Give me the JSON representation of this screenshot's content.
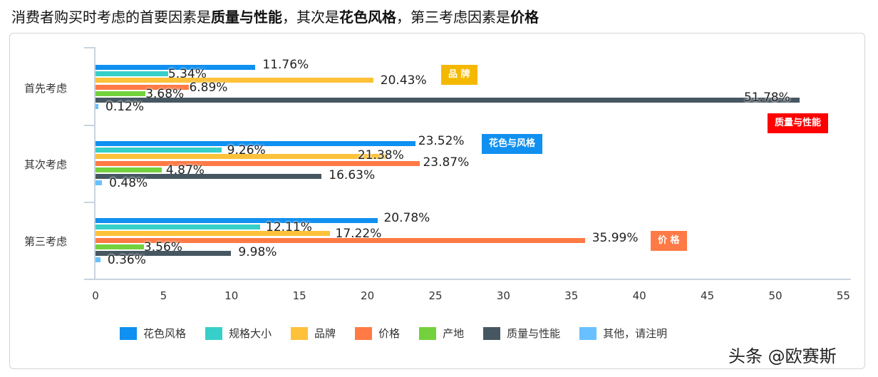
{
  "title": {
    "part1": "消费者购买时考虑的首要因素是",
    "bold1": "质量与性能",
    "part2": "，其次是",
    "bold2": "花色风格",
    "part3": "，第三考虑因素是",
    "bold3": "价格"
  },
  "chart_data": {
    "type": "bar",
    "orientation": "horizontal",
    "title": "消费者购买时考虑的首要因素是质量与性能，其次是花色风格，第三考虑因素是价格",
    "xlabel": "",
    "ylabel": "",
    "xlim": [
      0,
      55
    ],
    "xticks": [
      0,
      5,
      10,
      15,
      20,
      25,
      30,
      35,
      40,
      45,
      50,
      55
    ],
    "grid": false,
    "legend_position": "bottom",
    "categories": [
      "首先考虑",
      "其次考虑",
      "第三考虑"
    ],
    "series": [
      {
        "name": "花色风格",
        "color": "#1090f0",
        "values": [
          11.76,
          23.52,
          20.78
        ],
        "labels": [
          "11.76%",
          "23.52%",
          "20.78%"
        ]
      },
      {
        "name": "规格大小",
        "color": "#36cfc9",
        "values": [
          5.34,
          9.26,
          12.11
        ],
        "labels": [
          "5.34%",
          "9.26%",
          "12.11%"
        ]
      },
      {
        "name": "品牌",
        "color": "#fdc13a",
        "values": [
          20.43,
          21.38,
          17.22
        ],
        "labels": [
          "20.43%",
          "21.38%",
          "17.22%"
        ]
      },
      {
        "name": "价格",
        "color": "#ff7a45",
        "values": [
          6.89,
          23.87,
          35.99
        ],
        "labels": [
          "6.89%",
          "23.87%",
          "35.99%"
        ]
      },
      {
        "name": "产地",
        "color": "#73d13d",
        "values": [
          3.68,
          4.87,
          3.56
        ],
        "labels": [
          "3.68%",
          "4.87%",
          "3.56%"
        ]
      },
      {
        "name": "质量与性能",
        "color": "#465761",
        "values": [
          51.78,
          16.63,
          9.98
        ],
        "labels": [
          "51.78%",
          "16.63%",
          "9.98%"
        ]
      },
      {
        "name": "其他，请注明",
        "color": "#69c0ff",
        "values": [
          0.12,
          0.48,
          0.36
        ],
        "labels": [
          "0.12%",
          "0.48%",
          "0.36%"
        ]
      }
    ],
    "annotations": [
      {
        "text": "品 牌",
        "color": "#f5b800"
      },
      {
        "text": "质量与性能",
        "color": "#ff0000"
      },
      {
        "text": "花色与风格",
        "color": "#1090f0"
      },
      {
        "text": "价 格",
        "color": "#ff7a45"
      }
    ]
  },
  "x_axis": {
    "ticks": [
      "0",
      "5",
      "10",
      "15",
      "20",
      "25",
      "30",
      "35",
      "40",
      "45",
      "50",
      "55"
    ]
  },
  "y_axis": {
    "categories": [
      "首先考虑",
      "其次考虑",
      "第三考虑"
    ]
  },
  "legend": [
    "花色风格",
    "规格大小",
    "品牌",
    "价格",
    "产地",
    "质量与性能",
    "其他，请注明"
  ],
  "tags": {
    "brand": "品 牌",
    "quality": "质量与性能",
    "style": "花色与风格",
    "price": "价 格"
  },
  "watermark": "头条 @欧赛斯"
}
